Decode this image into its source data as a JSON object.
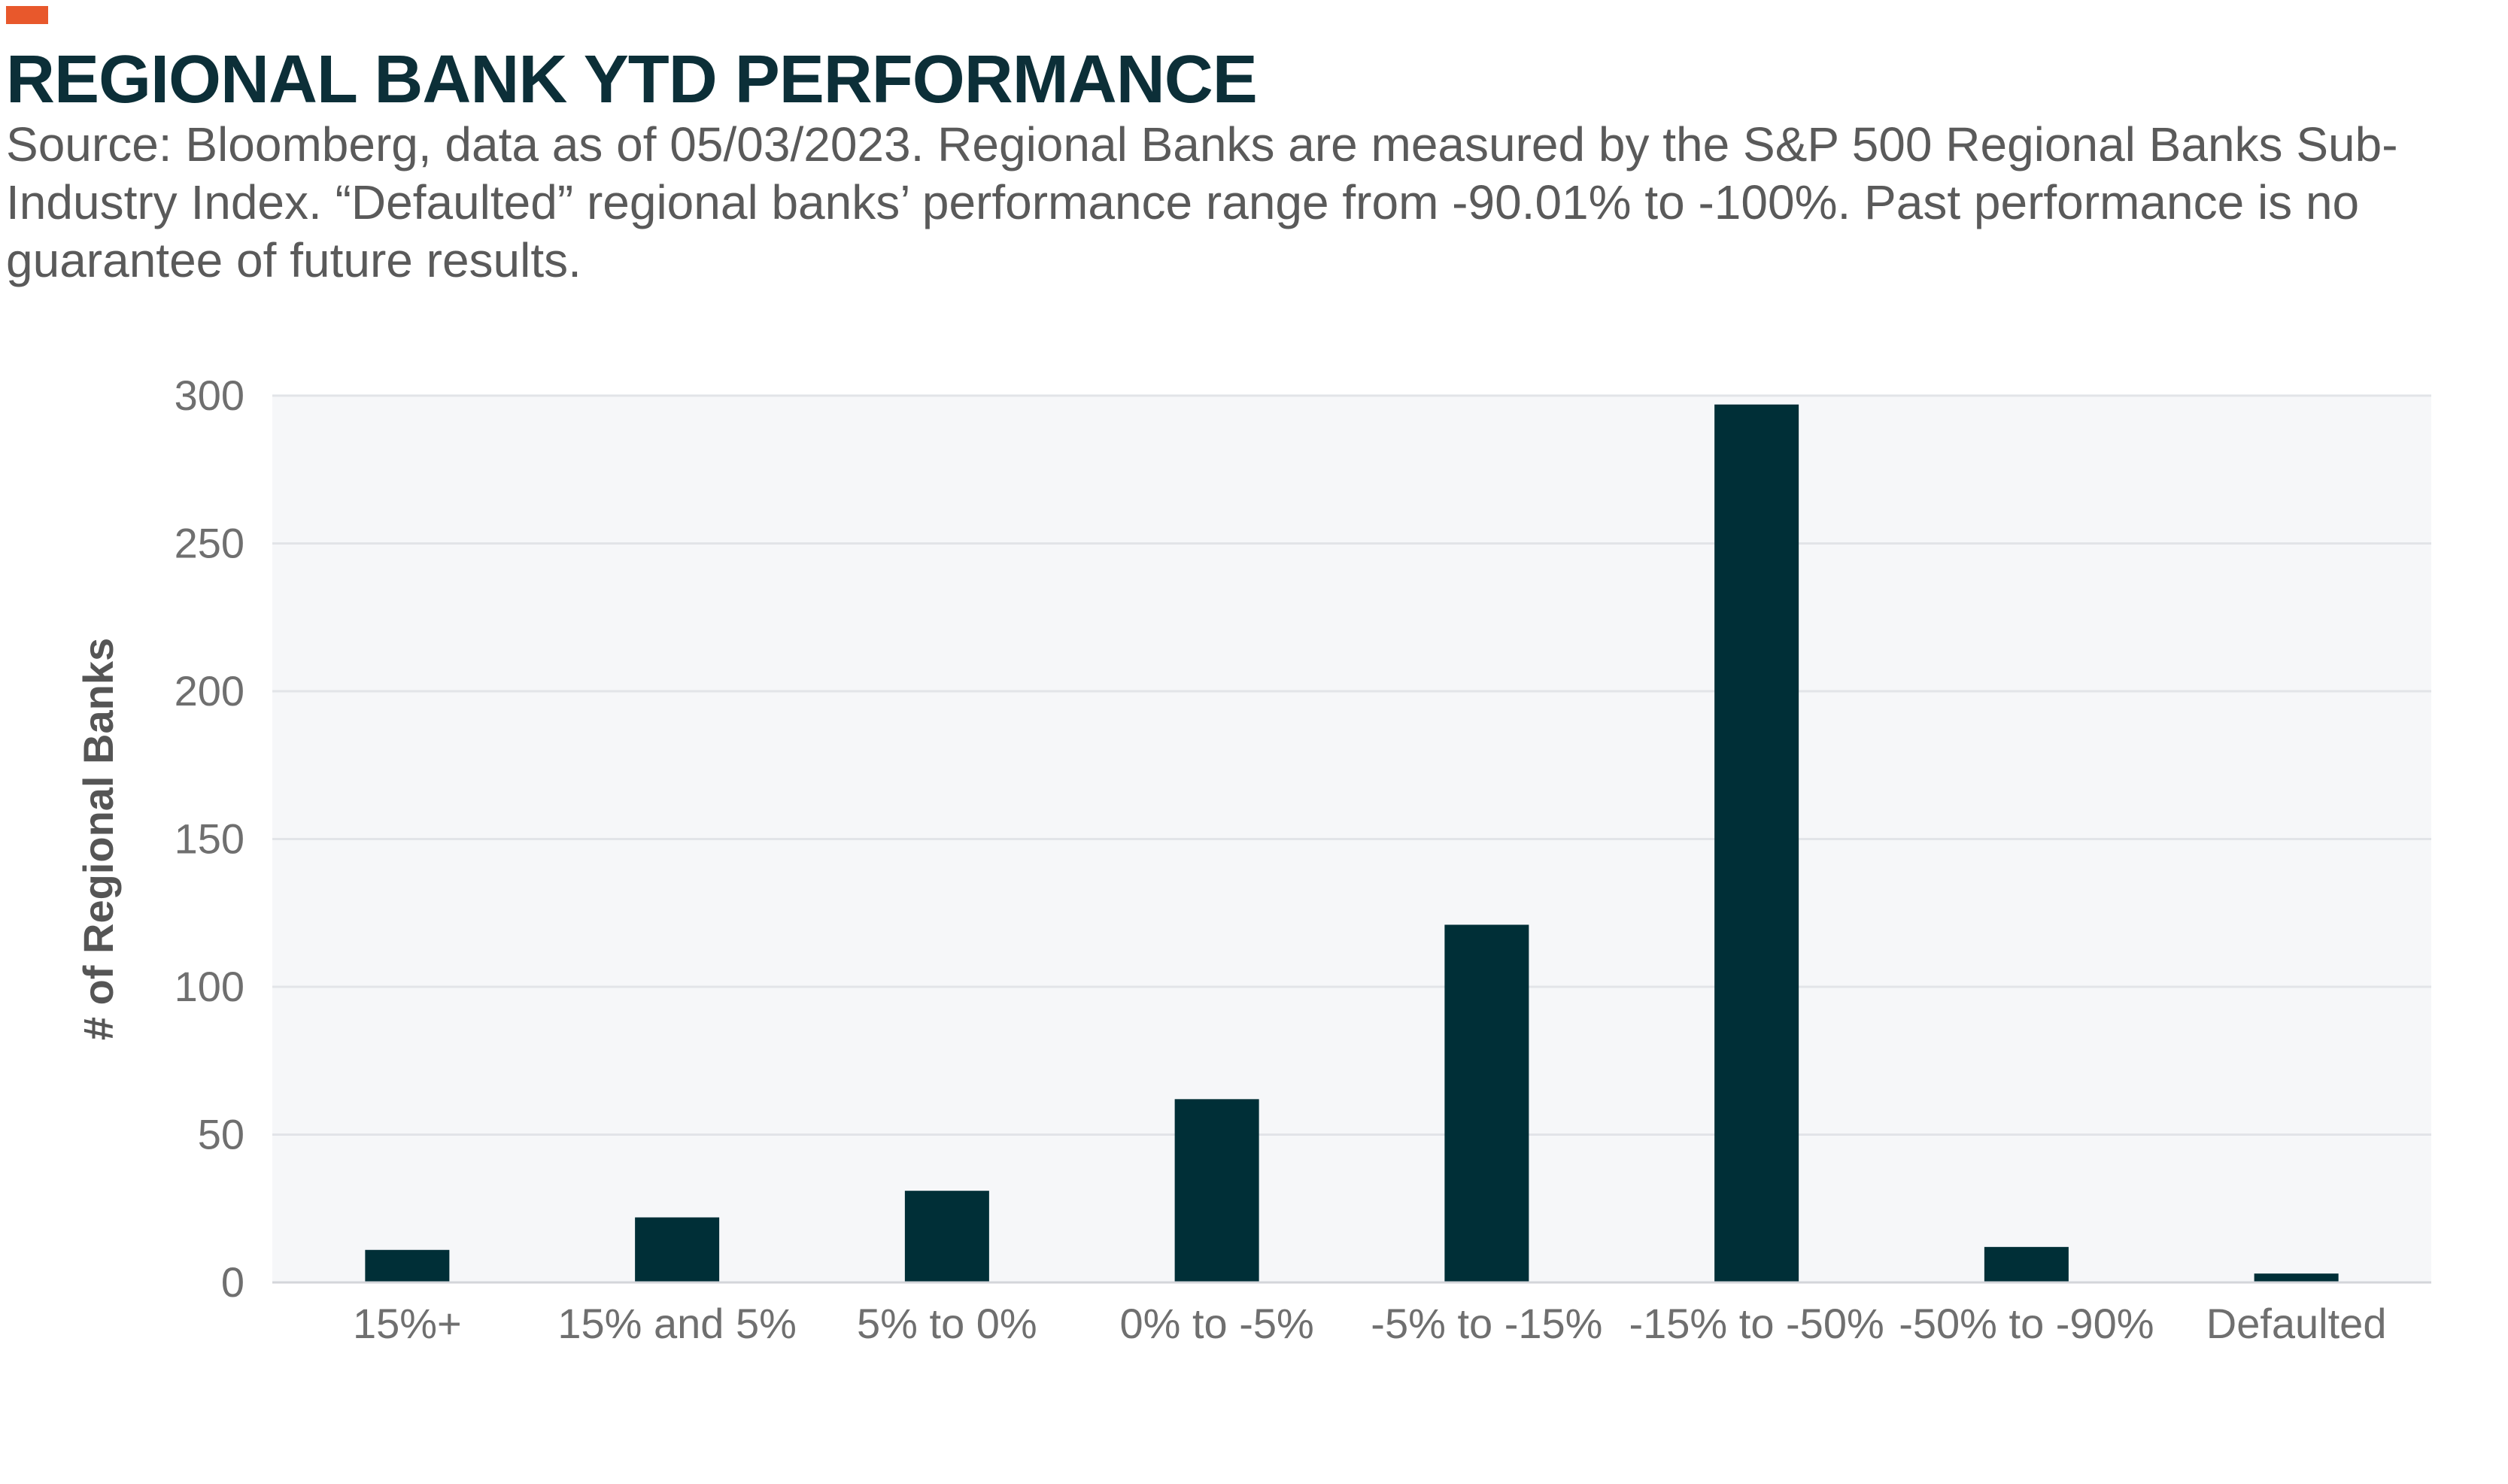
{
  "header": {
    "title": "REGIONAL BANK YTD PERFORMANCE",
    "subtitle": "Source: Bloomberg, data as of 05/03/2023. Regional Banks are measured by the S&P 500 Regional Banks Sub-Industry Index. “Defaulted” regional banks’ performance range from -90.01% to -100%. Past performance is no guarantee of future results.",
    "accent_color": "#e8582c"
  },
  "chart_data": {
    "type": "bar",
    "categories": [
      "15%+",
      "15% and 5%",
      "5% to 0%",
      "0% to -5%",
      "-5% to -15%",
      "-15% to -50%",
      "-50% to -90%",
      "Defaulted"
    ],
    "values": [
      11,
      22,
      31,
      62,
      121,
      297,
      12,
      3
    ],
    "ylabel": "# of Regional Banks",
    "xlabel": "",
    "ylim": [
      0,
      300
    ],
    "yticks": [
      0,
      50,
      100,
      150,
      200,
      250,
      300
    ],
    "grid": true,
    "legend": "none",
    "bar_color": "#002f37",
    "plot_background": "#f6f7f9",
    "grid_color": "#e2e4e8"
  }
}
